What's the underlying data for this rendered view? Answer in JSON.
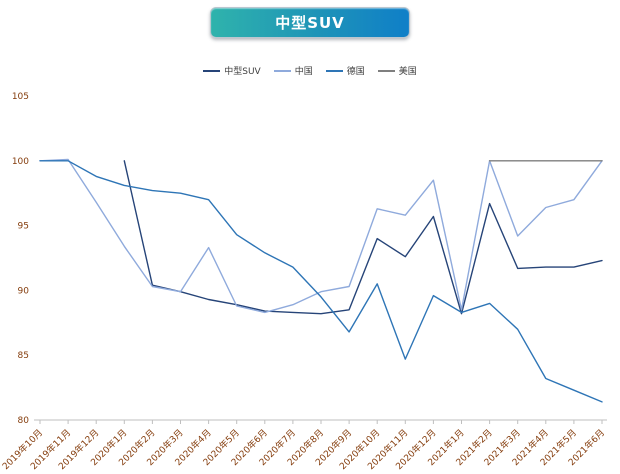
{
  "title": "中型SUV",
  "styles": {
    "axis_label_color": "#843C0C",
    "axis_line_color": "#BFBFBF",
    "banner_gradient_start": "#2FB3AC",
    "banner_gradient_end": "#0F7FC8",
    "background": "#FFFFFF"
  },
  "chart_data": {
    "type": "line",
    "title": "中型SUV",
    "categories": [
      "2019年10月",
      "2019年11月",
      "2019年12月",
      "2020年1月",
      "2020年2月",
      "2020年3月",
      "2020年4月",
      "2020年5月",
      "2020年6月",
      "2020年7月",
      "2020年8月",
      "2020年9月",
      "2020年10月",
      "2020年11月",
      "2020年12月",
      "2021年1月",
      "2021年2月",
      "2021年3月",
      "2021年4月",
      "2021年5月",
      "2021年6月"
    ],
    "series": [
      {
        "name": "中型SUV",
        "color": "#264478",
        "values": [
          null,
          null,
          null,
          100,
          90.4,
          89.9,
          89.3,
          88.9,
          88.4,
          88.3,
          88.2,
          88.5,
          94.0,
          92.6,
          95.7,
          88.2,
          96.7,
          91.7,
          91.8,
          91.8,
          92.3
        ]
      },
      {
        "name": "中国",
        "color": "#8FAADC",
        "values": [
          100,
          100.1,
          96.8,
          93.4,
          90.3,
          89.9,
          93.3,
          88.8,
          88.3,
          88.9,
          89.9,
          90.3,
          96.3,
          95.8,
          98.5,
          88.5,
          100,
          94.2,
          96.4,
          97.0,
          100
        ]
      },
      {
        "name": "德国",
        "color": "#2E75B6",
        "values": [
          100,
          100,
          98.8,
          98.1,
          97.7,
          97.5,
          97.0,
          94.3,
          92.9,
          91.8,
          89.5,
          86.8,
          90.5,
          84.7,
          89.6,
          88.3,
          89.0,
          87.0,
          83.2,
          82.3,
          81.4
        ]
      },
      {
        "name": "美国",
        "color": "#7F7F7F",
        "values": [
          null,
          null,
          null,
          null,
          null,
          null,
          null,
          null,
          null,
          null,
          null,
          null,
          null,
          null,
          null,
          null,
          100,
          100,
          100,
          100,
          100
        ]
      }
    ],
    "ylim": [
      80,
      105
    ],
    "yticks": [
      80,
      85,
      90,
      95,
      100,
      105
    ],
    "legend_position": "top",
    "grid": false
  }
}
